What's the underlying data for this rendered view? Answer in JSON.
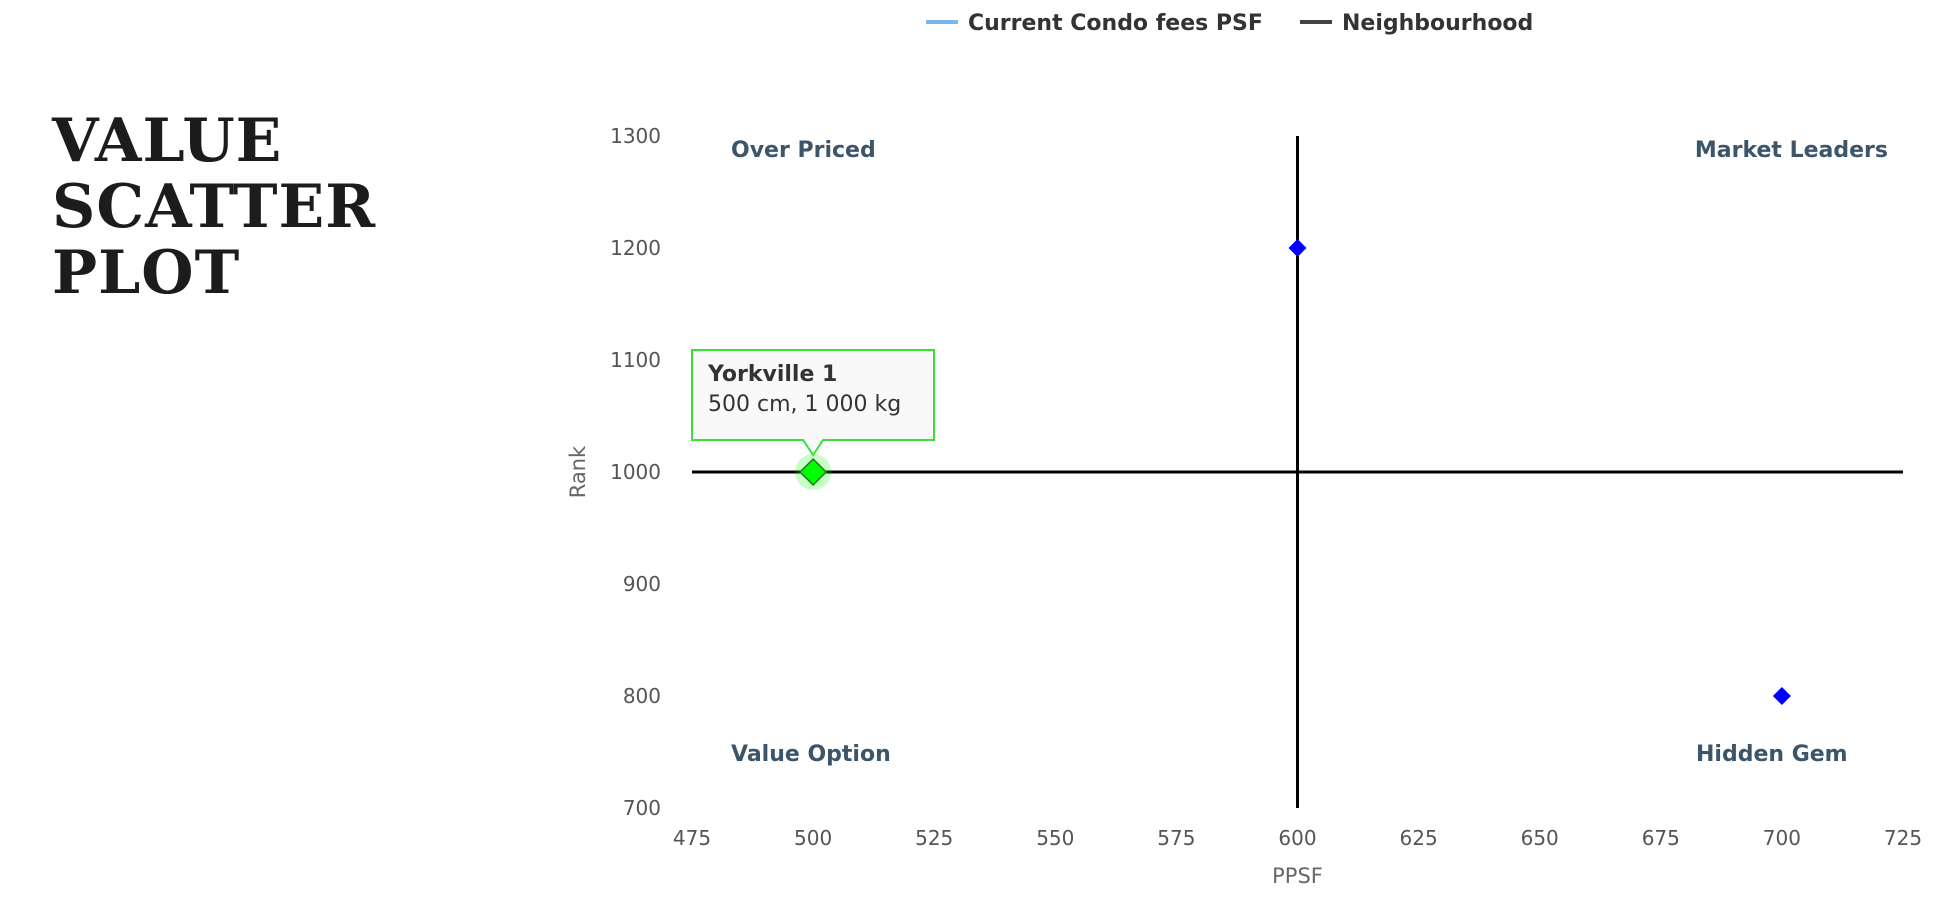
{
  "heading": {
    "lines": [
      "VALUE",
      "SCATTER",
      "PLOT"
    ]
  },
  "chart_data": {
    "type": "scatter",
    "title": "",
    "xlabel": "PPSF",
    "ylabel": "Rank",
    "xlim": [
      475,
      725
    ],
    "ylim": [
      700,
      1300
    ],
    "x_ticks": [
      475,
      500,
      525,
      550,
      575,
      600,
      625,
      650,
      675,
      700,
      725
    ],
    "y_ticks": [
      700,
      800,
      900,
      1000,
      1100,
      1200,
      1300
    ],
    "grid": false,
    "legend_position": "top-center",
    "legend": [
      {
        "name": "Current Condo fees PSF",
        "color": "#7cb5ec"
      },
      {
        "name": "Neighbourhood",
        "color": "#434348"
      }
    ],
    "divider_lines": {
      "x": 600,
      "y": 1000,
      "color": "#000000"
    },
    "points": [
      {
        "x": 500,
        "y": 1000,
        "color": "#00ff00",
        "highlighted": true
      },
      {
        "x": 600,
        "y": 1200,
        "color": "#0000ff",
        "highlighted": false
      },
      {
        "x": 700,
        "y": 800,
        "color": "#0000ff",
        "highlighted": false
      }
    ],
    "quadrant_labels": {
      "top_left": "Over Priced",
      "top_right": "Market Leaders",
      "bottom_left": "Value Option",
      "bottom_right": "Hidden Gem"
    },
    "tooltip": {
      "title": "Yorkville 1",
      "body": "500 cm, 1 000 kg",
      "border_color": "#38e038"
    }
  }
}
